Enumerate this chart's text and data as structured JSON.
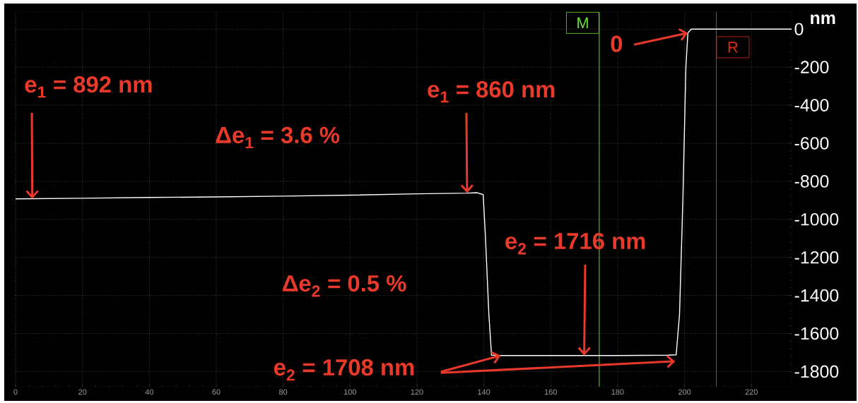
{
  "chart_data": {
    "type": "line",
    "ylabel": "nm",
    "x": [
      0,
      20,
      40,
      60,
      80,
      100,
      120,
      135,
      138,
      139.8,
      140.5,
      141.5,
      142.3,
      145,
      160,
      180,
      195,
      197.5,
      198.5,
      199.5,
      200.4,
      201,
      202,
      205,
      220,
      232
    ],
    "series": [
      {
        "color": "#ffffff",
        "values": [
          -892,
          -889,
          -885,
          -882,
          -878,
          -873,
          -866,
          -862,
          -860,
          -870,
          -1100,
          -1500,
          -1714,
          -1716,
          -1716,
          -1716,
          -1714,
          -1712,
          -1500,
          -900,
          -200,
          -20,
          0,
          0,
          0,
          0
        ]
      }
    ],
    "xlim": [
      0,
      232
    ],
    "ylim": [
      -1880,
      90
    ],
    "xticks": [
      0,
      20,
      40,
      60,
      80,
      100,
      120,
      140,
      160,
      180,
      200,
      220
    ],
    "yticks": [
      -1800,
      -1600,
      -1400,
      -1200,
      -1000,
      -800,
      -600,
      -400,
      -200,
      0
    ],
    "grid": true,
    "ref_lines": [
      {
        "axis": "x",
        "value": 174.5,
        "label": "M",
        "color": "#66dd33"
      },
      {
        "axis": "x",
        "value": 209.5,
        "label": "R",
        "color": "#dd2a1a"
      }
    ],
    "annotations": [
      {
        "text": "e$_{1}$ = 892 nm",
        "x": 5,
        "y": -892
      },
      "Δe$_{1}$ = 3.6 %",
      {
        "text": "e$_{1}$ = 860 nm",
        "x": 135,
        "y": -862
      },
      {
        "text": "0",
        "x": 201,
        "y": -20
      },
      {
        "text": "e$_{2}$ = 1716 nm",
        "x": 170,
        "y": -1716
      },
      "Δe$_{2}$ = 0.5 %",
      {
        "text": "e$_{2}$ = 1708 nm",
        "x": 145,
        "y": -1716
      }
    ]
  }
}
